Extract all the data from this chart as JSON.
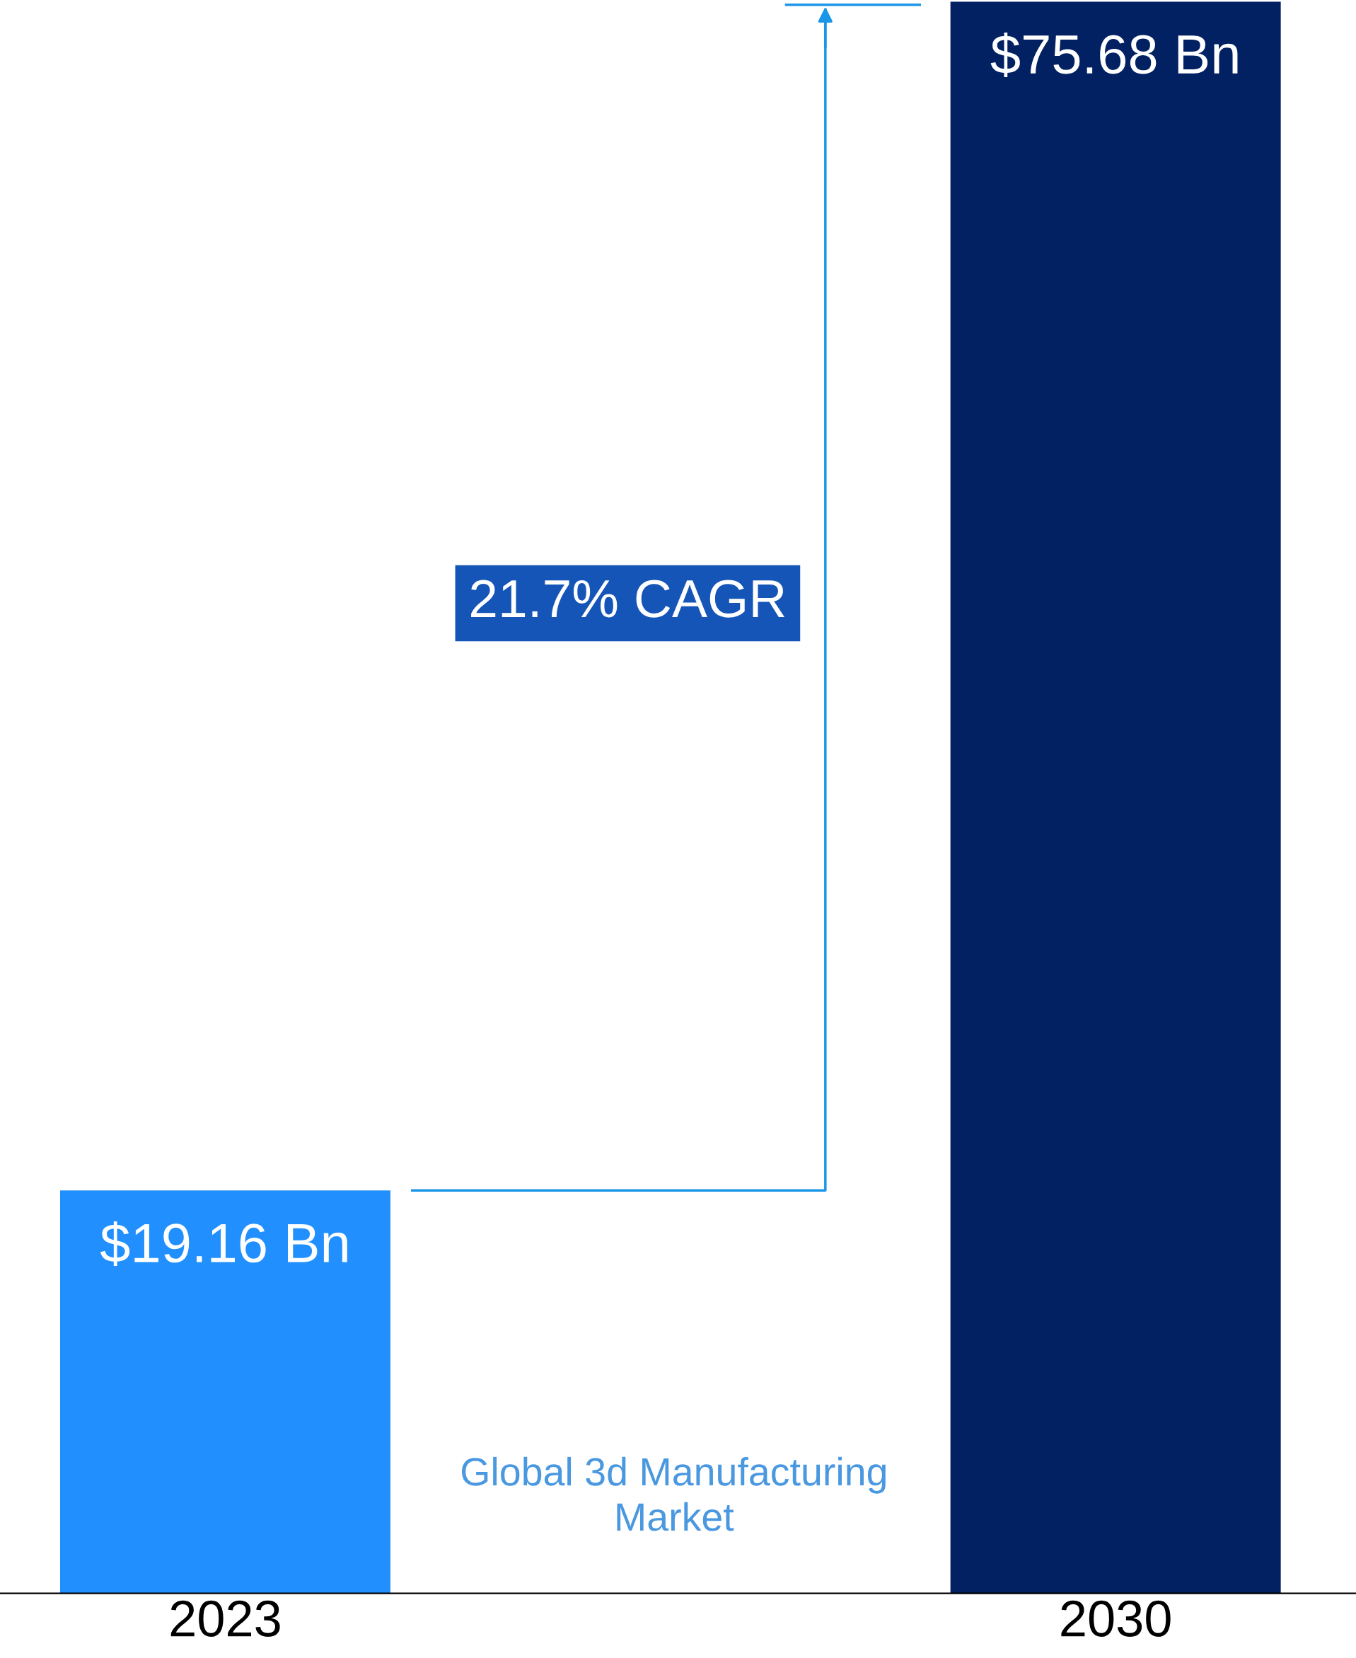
{
  "chart_data": {
    "type": "bar",
    "title": "Global 3d Manufacturing Market",
    "categories": [
      "2023",
      "2030"
    ],
    "values": [
      19.16,
      75.68
    ],
    "colors": [
      "#2190fe",
      "#022163"
    ],
    "value_labels": [
      "$19.16 Bn",
      "$75.68 Bn"
    ],
    "ylim": [
      0,
      75.68
    ],
    "annotations": [
      "21.7% CAGR"
    ],
    "tick_labels": "x"
  }
}
